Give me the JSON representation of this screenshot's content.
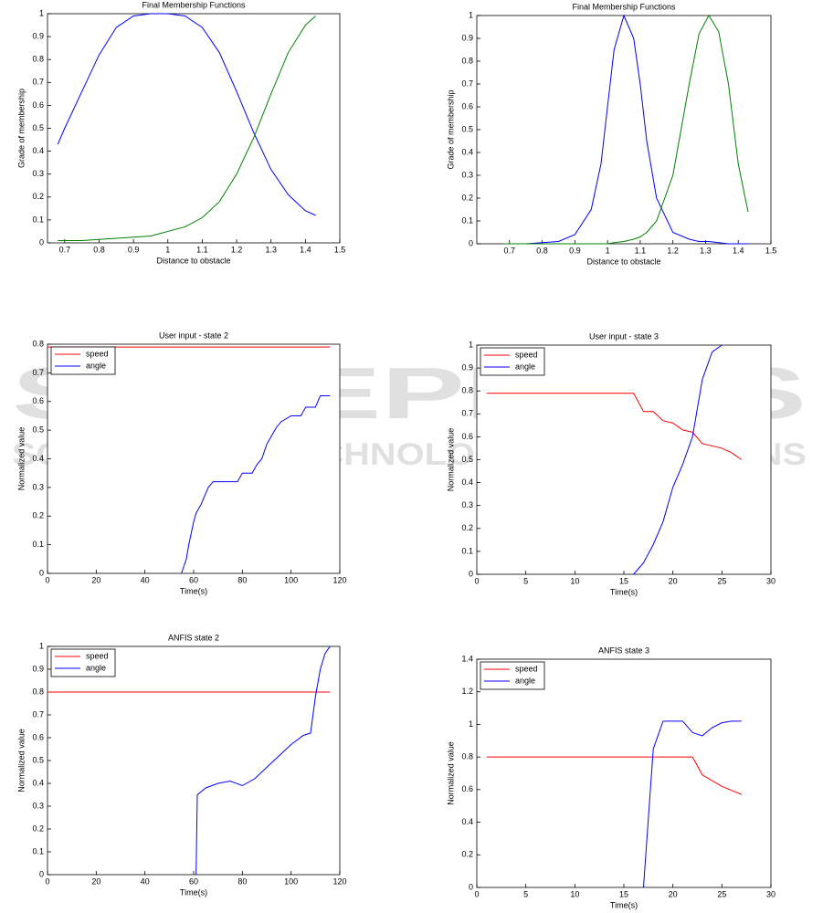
{
  "watermark": {
    "title": "SCITEPRESS",
    "subtitle": "SCIENCE AND TECHNOLOGY PUBLICATIONS"
  },
  "chart_data": [
    {
      "type": "line",
      "title": "Final Membership Functions",
      "x_label": "Distance to obstacle",
      "y_label": "Grade of membership",
      "x": [
        0.68,
        0.7,
        0.75,
        0.8,
        0.85,
        0.9,
        0.95,
        1.0,
        1.05,
        1.1,
        1.15,
        1.2,
        1.25,
        1.3,
        1.35,
        1.4,
        1.43
      ],
      "series": [
        {
          "color": "#0000ff",
          "values": [
            0.43,
            0.5,
            0.66,
            0.82,
            0.94,
            0.99,
            1,
            1,
            0.99,
            0.94,
            0.83,
            0.66,
            0.48,
            0.32,
            0.21,
            0.14,
            0.12
          ]
        },
        {
          "color": "#008000",
          "values": [
            0.01,
            0.01,
            0.01,
            0.015,
            0.02,
            0.025,
            0.03,
            0.05,
            0.07,
            0.11,
            0.18,
            0.3,
            0.46,
            0.65,
            0.83,
            0.95,
            0.99
          ]
        }
      ],
      "xlim": [
        0.65,
        1.5
      ],
      "xticks": [
        0.7,
        0.8,
        0.9,
        1,
        1.1,
        1.2,
        1.3,
        1.4,
        1.5
      ],
      "ylim": [
        0,
        1
      ],
      "yticks": [
        0,
        0.1,
        0.2,
        0.3,
        0.4,
        0.5,
        0.6,
        0.7,
        0.8,
        0.9,
        1
      ]
    },
    {
      "type": "line",
      "title": "Final Membership Functions",
      "x_label": "Distance to obstacle",
      "y_label": "Grade of membership",
      "x": [
        0.68,
        0.75,
        0.8,
        0.85,
        0.9,
        0.95,
        0.98,
        1.0,
        1.02,
        1.05,
        1.08,
        1.1,
        1.12,
        1.15,
        1.2,
        1.25,
        1.28,
        1.31,
        1.34,
        1.37,
        1.4,
        1.43
      ],
      "series": [
        {
          "color": "#0000ff",
          "values": [
            0,
            0,
            0.005,
            0.01,
            0.04,
            0.15,
            0.35,
            0.6,
            0.85,
            1,
            0.9,
            0.7,
            0.45,
            0.2,
            0.05,
            0.02,
            0.01,
            0.01,
            0.005,
            0,
            0,
            0
          ]
        },
        {
          "color": "#008000",
          "values": [
            0,
            0,
            0,
            0,
            0,
            0,
            0,
            0,
            0.005,
            0.01,
            0.02,
            0.03,
            0.05,
            0.1,
            0.3,
            0.7,
            0.92,
            1,
            0.93,
            0.7,
            0.35,
            0.14
          ]
        }
      ],
      "xlim": [
        0.6,
        1.5
      ],
      "xticks": [
        0.7,
        0.8,
        0.9,
        1,
        1.1,
        1.2,
        1.3,
        1.4,
        1.5
      ],
      "ylim": [
        0,
        1
      ],
      "yticks": [
        0,
        0.1,
        0.2,
        0.3,
        0.4,
        0.5,
        0.6,
        0.7,
        0.8,
        0.9,
        1
      ]
    },
    {
      "type": "line",
      "title": "User input - state 2",
      "x_label": "Time(s)",
      "y_label": "Normalized value",
      "legend": "upper left",
      "series": [
        {
          "name": "speed",
          "color": "#ff0000",
          "x": [
            0,
            116
          ],
          "values": [
            0.79,
            0.79
          ]
        },
        {
          "name": "angle",
          "color": "#0000ff",
          "x": [
            55,
            57,
            58,
            60,
            61,
            63,
            64,
            66,
            68,
            70,
            78,
            80,
            84,
            86,
            88,
            90,
            92,
            94,
            96,
            100,
            104,
            106,
            110,
            112,
            116
          ],
          "values": [
            0,
            0.05,
            0.1,
            0.18,
            0.21,
            0.24,
            0.26,
            0.3,
            0.32,
            0.32,
            0.32,
            0.35,
            0.35,
            0.38,
            0.4,
            0.45,
            0.48,
            0.51,
            0.53,
            0.55,
            0.55,
            0.58,
            0.58,
            0.62,
            0.62
          ]
        }
      ],
      "xlim": [
        0,
        120
      ],
      "xticks": [
        0,
        20,
        40,
        60,
        80,
        100,
        120
      ],
      "ylim": [
        0,
        0.8
      ],
      "yticks": [
        0,
        0.1,
        0.2,
        0.3,
        0.4,
        0.5,
        0.6,
        0.7,
        0.8
      ]
    },
    {
      "type": "line",
      "title": "User input - state 3",
      "x_label": "Time(s)",
      "y_label": "Normalized value",
      "legend": "upper left",
      "series": [
        {
          "name": "speed",
          "color": "#ff0000",
          "x": [
            1,
            16,
            17,
            18,
            19,
            20,
            21,
            22,
            23,
            24,
            25,
            26,
            27
          ],
          "values": [
            0.79,
            0.79,
            0.71,
            0.71,
            0.67,
            0.66,
            0.63,
            0.62,
            0.57,
            0.56,
            0.55,
            0.53,
            0.5
          ]
        },
        {
          "name": "angle",
          "color": "#0000ff",
          "x": [
            16,
            17,
            18,
            19,
            20,
            21,
            22,
            23,
            24,
            25
          ],
          "values": [
            0,
            0.05,
            0.13,
            0.23,
            0.38,
            0.48,
            0.6,
            0.85,
            0.97,
            1
          ]
        }
      ],
      "xlim": [
        0,
        30
      ],
      "xticks": [
        0,
        5,
        10,
        15,
        20,
        25,
        30
      ],
      "ylim": [
        0,
        1
      ],
      "yticks": [
        0,
        0.1,
        0.2,
        0.3,
        0.4,
        0.5,
        0.6,
        0.7,
        0.8,
        0.9,
        1
      ]
    },
    {
      "type": "line",
      "title": "ANFIS state 2",
      "x_label": "Time(s)",
      "y_label": "Normalized value",
      "legend": "upper left",
      "series": [
        {
          "name": "speed",
          "color": "#ff0000",
          "x": [
            0,
            116
          ],
          "values": [
            0.8,
            0.8
          ]
        },
        {
          "name": "angle",
          "color": "#0000ff",
          "x": [
            61,
            61.5,
            65,
            70,
            75,
            80,
            85,
            90,
            95,
            100,
            105,
            108,
            110,
            112,
            114,
            116
          ],
          "values": [
            0,
            0.35,
            0.38,
            0.4,
            0.41,
            0.39,
            0.42,
            0.47,
            0.52,
            0.57,
            0.61,
            0.62,
            0.78,
            0.9,
            0.97,
            1
          ]
        }
      ],
      "xlim": [
        0,
        120
      ],
      "xticks": [
        0,
        20,
        40,
        60,
        80,
        100,
        120
      ],
      "ylim": [
        0,
        1
      ],
      "yticks": [
        0,
        0.1,
        0.2,
        0.3,
        0.4,
        0.5,
        0.6,
        0.7,
        0.8,
        0.9,
        1
      ]
    },
    {
      "type": "line",
      "title": "ANFIS state 3",
      "x_label": "Time(s)",
      "y_label": "Normalized value",
      "legend": "upper left",
      "series": [
        {
          "name": "speed",
          "color": "#ff0000",
          "x": [
            1,
            22,
            23,
            25,
            27
          ],
          "values": [
            0.8,
            0.8,
            0.69,
            0.62,
            0.57
          ]
        },
        {
          "name": "angle",
          "color": "#0000ff",
          "x": [
            17,
            18,
            19,
            20,
            21,
            22,
            23,
            24,
            25,
            26,
            27
          ],
          "values": [
            0,
            0.85,
            1.02,
            1.02,
            1.02,
            0.95,
            0.93,
            0.98,
            1.01,
            1.02,
            1.02
          ]
        }
      ],
      "xlim": [
        0,
        30
      ],
      "xticks": [
        0,
        5,
        10,
        15,
        20,
        25,
        30
      ],
      "ylim": [
        0,
        1.4
      ],
      "yticks": [
        0,
        0.2,
        0.4,
        0.6,
        0.8,
        1,
        1.2,
        1.4
      ]
    }
  ]
}
